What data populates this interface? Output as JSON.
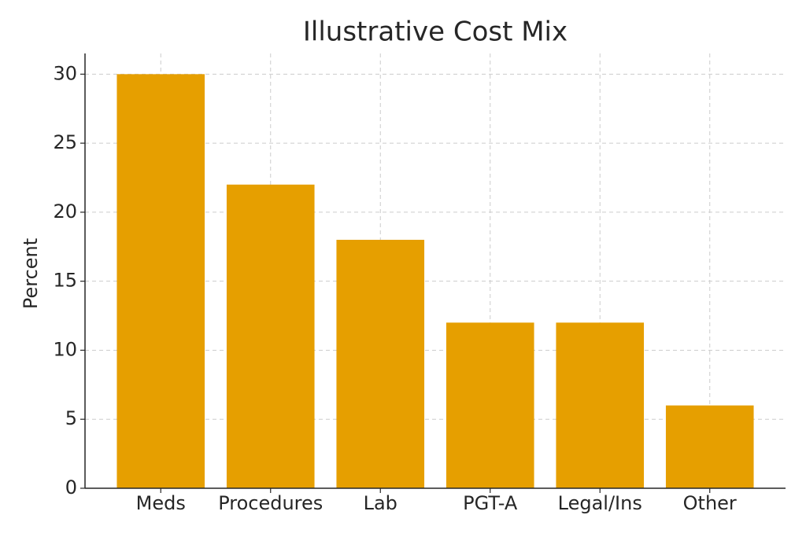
{
  "chart_data": {
    "type": "bar",
    "title": "Illustrative Cost Mix",
    "y_label": "Percent",
    "categories": [
      "Meds",
      "Procedures",
      "Lab",
      "PGT-A",
      "Legal/Ins",
      "Other"
    ],
    "values": [
      30,
      22,
      18,
      12,
      12,
      6
    ],
    "color": "#e69f00",
    "ylim": [
      0,
      31.5
    ],
    "yticks": [
      0,
      5,
      10,
      15,
      20,
      25,
      30
    ],
    "grid": true
  }
}
